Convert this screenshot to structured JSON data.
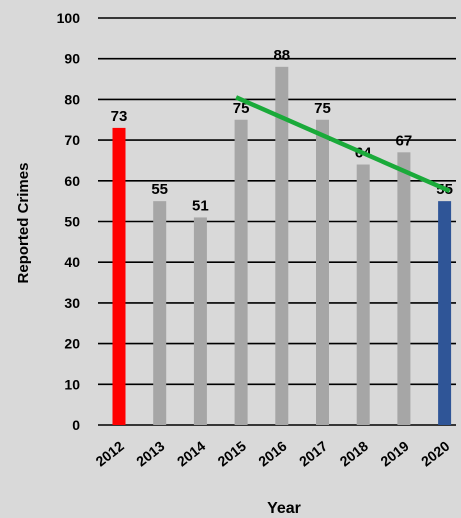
{
  "chart_data": {
    "type": "bar",
    "categories": [
      "2012",
      "2013",
      "2014",
      "2015",
      "2016",
      "2017",
      "2018",
      "2019",
      "2020"
    ],
    "values": [
      73,
      55,
      51,
      75,
      88,
      75,
      64,
      67,
      55
    ],
    "data_labels": [
      "73",
      "55",
      "51",
      "75",
      "88",
      "75",
      "64",
      "67",
      "55"
    ],
    "bar_colors": [
      "#ff0000",
      "#a6a6a6",
      "#a6a6a6",
      "#a6a6a6",
      "#a6a6a6",
      "#a6a6a6",
      "#a6a6a6",
      "#a6a6a6",
      "#2f5597"
    ],
    "xlabel": "Year",
    "ylabel": "Reported Crimes",
    "ylim": [
      0,
      100
    ],
    "yticks": [
      "0",
      "10",
      "20",
      "30",
      "40",
      "50",
      "60",
      "70",
      "80",
      "90",
      "100"
    ],
    "grid": true,
    "trendline": {
      "color": "#1aaa3a",
      "from": {
        "x": "2015",
        "y": 80.5
      },
      "to": {
        "x": "2020",
        "y": 57.5
      }
    },
    "background": "#d9d9d9"
  }
}
